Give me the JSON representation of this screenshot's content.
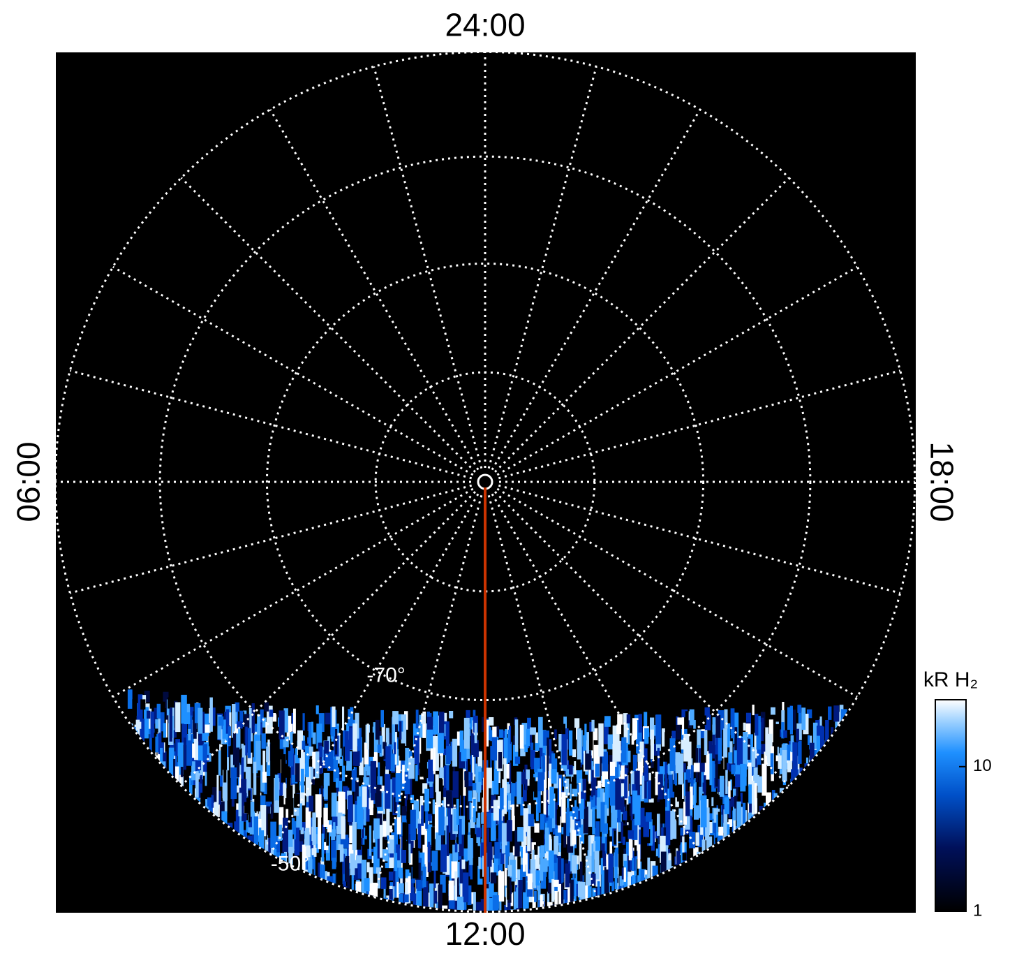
{
  "chart_data": {
    "type": "polar-map",
    "local_time_labels": [
      {
        "value": 24,
        "label": "24:00"
      },
      {
        "value": 6,
        "label": "06:00"
      },
      {
        "value": 12,
        "label": "12:00"
      },
      {
        "value": 18,
        "label": "18:00"
      }
    ],
    "lt_step": 1,
    "lat_rings": [
      -80,
      -70,
      -60,
      -50
    ],
    "lat_labels": [
      {
        "value": -70,
        "label": "-70°"
      },
      {
        "value": -50,
        "label": "-50°"
      }
    ],
    "highlight_local_time": 12,
    "highlight_color": "#cc3300",
    "colorbar": {
      "title": "kR H₂",
      "scale": "log",
      "lim": [
        1,
        29
      ],
      "ticks": [
        10,
        1
      ]
    }
  }
}
